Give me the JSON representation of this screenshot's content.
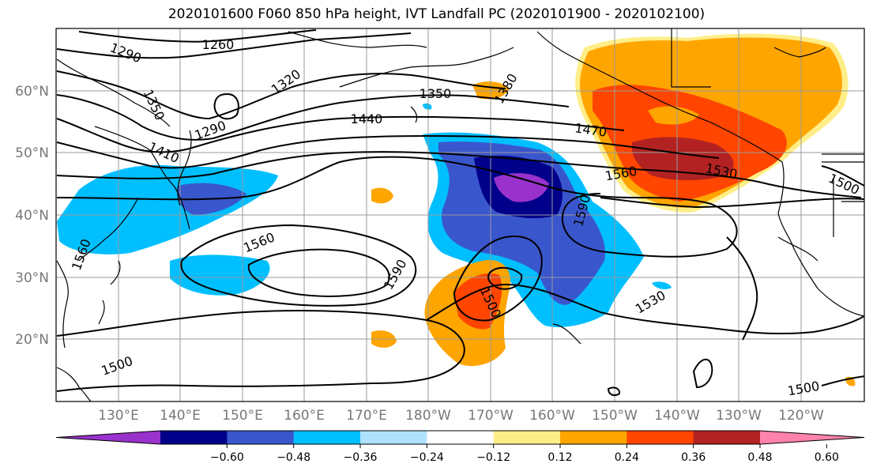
{
  "title": "2020101600 F060 850 hPa height, IVT Landfall PC (2020101900 - 2020102100)",
  "lat_labels": [
    "60°N",
    "50°N",
    "40°N",
    "30°N",
    "20°N"
  ],
  "lon_labels": [
    "130°E",
    "140°E",
    "150°E",
    "160°E",
    "170°E",
    "180°W",
    "170°W",
    "160°W",
    "150°W",
    "140°W",
    "130°W",
    "120°W"
  ],
  "contour_labels": [
    "1290",
    "1260",
    "1320",
    "1380",
    "1350",
    "1350",
    "1290",
    "1410",
    "1440",
    "1470",
    "1560",
    "1530",
    "1500",
    "1590",
    "1560",
    "1560",
    "1590",
    "1500",
    "1530",
    "1500",
    "1500"
  ],
  "colorbar": {
    "colors": [
      "#9932cc",
      "#00008b",
      "#3a56cc",
      "#00bfff",
      "#b0e2ff",
      "#ffffff",
      "#ffee88",
      "#ffa500",
      "#ff4500",
      "#b22222",
      "#ff82ab"
    ],
    "tick_labels": [
      "−0.60",
      "−0.48",
      "−0.36",
      "−0.24",
      "−0.12",
      "0.12",
      "0.24",
      "0.36",
      "0.48",
      "0.60"
    ]
  }
}
